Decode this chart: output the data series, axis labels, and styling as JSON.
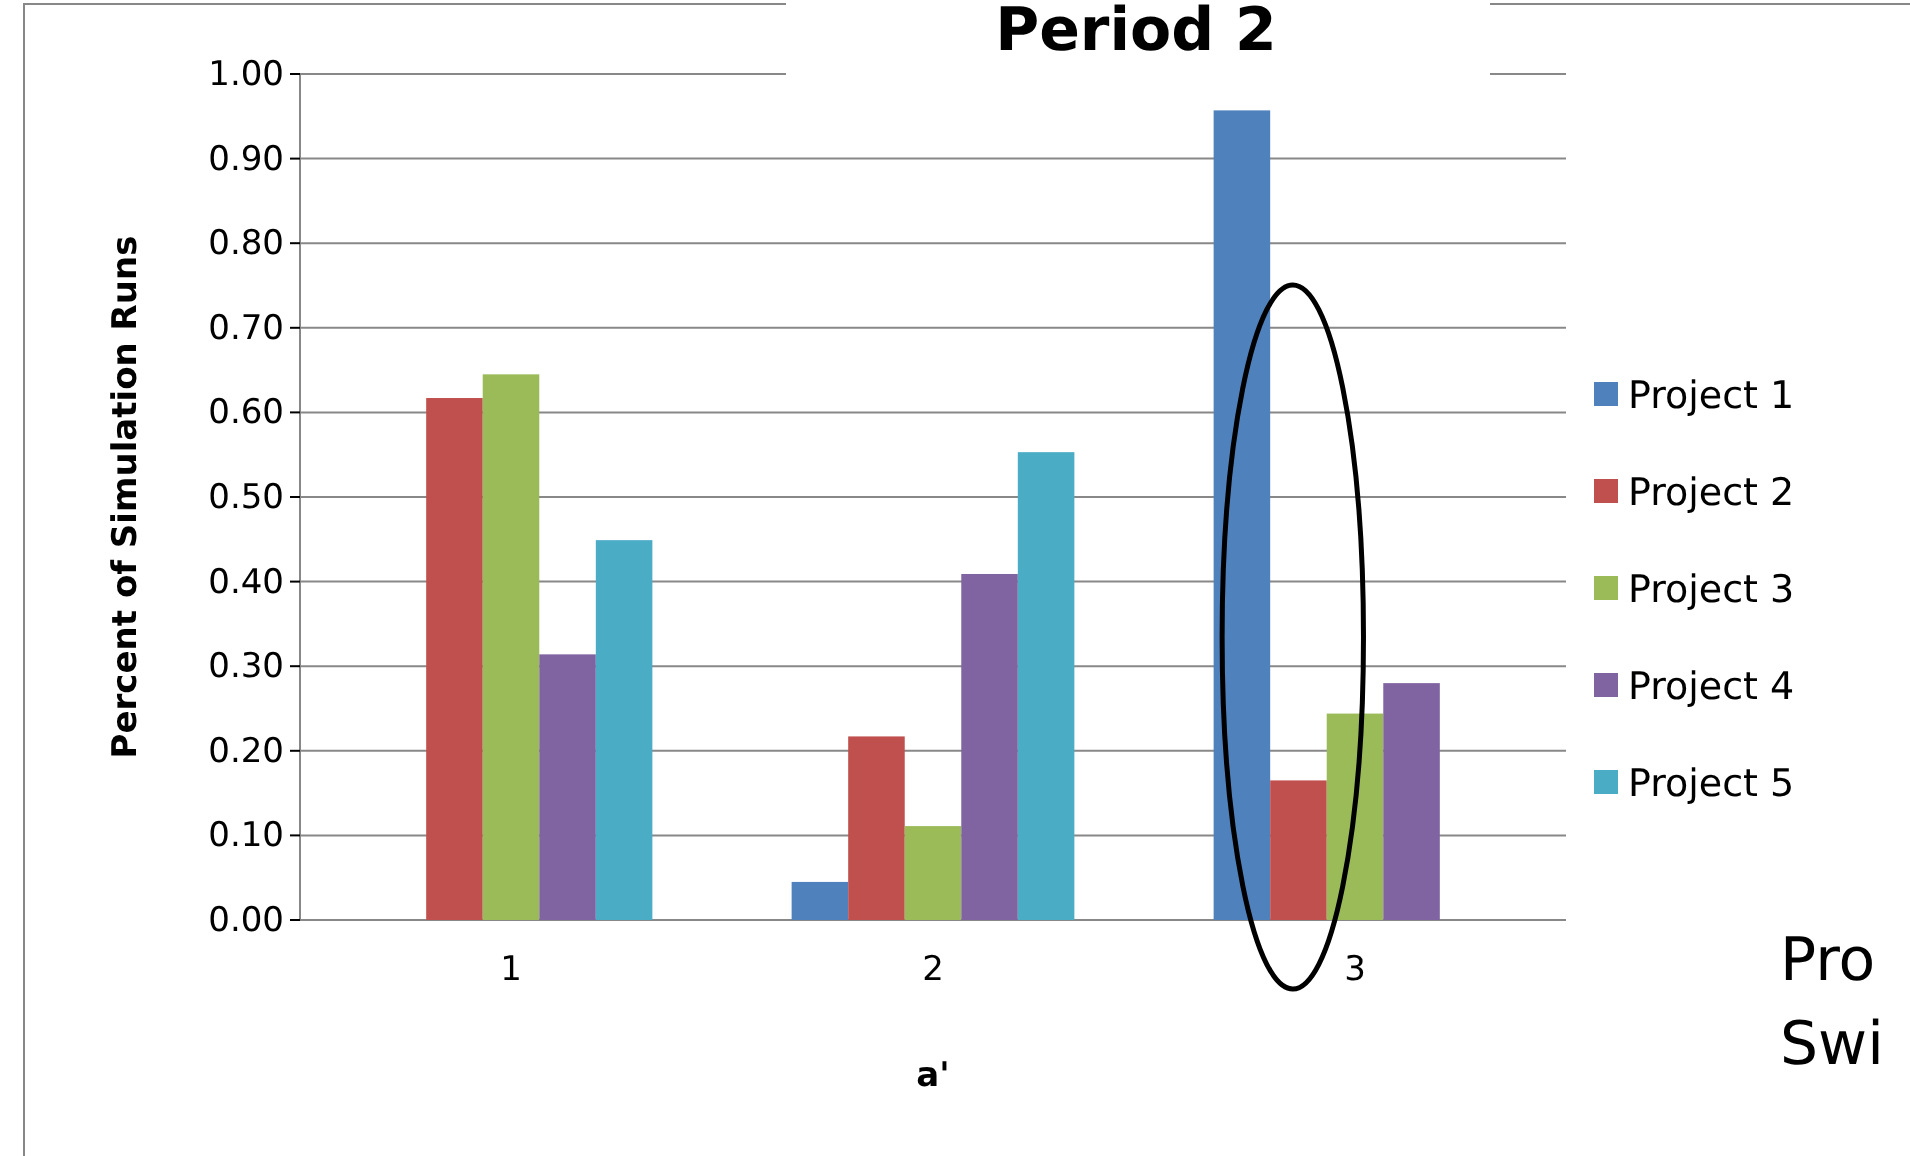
{
  "chart_data": {
    "type": "bar",
    "title": "Period 2",
    "xlabel": "a'",
    "ylabel": "Percent of Simulation Runs",
    "categories": [
      "1",
      "2",
      "3"
    ],
    "series": [
      {
        "name": "Project 1",
        "color": "#4f81bd",
        "values": [
          0,
          0.045,
          0.957
        ]
      },
      {
        "name": "Project 2",
        "color": "#c0504d",
        "values": [
          0.617,
          0.217,
          0.165
        ]
      },
      {
        "name": "Project 3",
        "color": "#9bbb59",
        "values": [
          0.645,
          0.111,
          0.244
        ]
      },
      {
        "name": "Project 4",
        "color": "#8064a2",
        "values": [
          0.314,
          0.409,
          0.28
        ]
      },
      {
        "name": "Project 5",
        "color": "#4bacc6",
        "values": [
          0.449,
          0.553,
          null
        ]
      }
    ],
    "ylim": [
      0,
      1
    ],
    "yticks": [
      {
        "value": 0,
        "label": "0.00"
      },
      {
        "value": 0.1,
        "label": "0.10"
      },
      {
        "value": 0.2,
        "label": "0.20"
      },
      {
        "value": 0.3,
        "label": "0.30"
      },
      {
        "value": 0.4,
        "label": "0.40"
      },
      {
        "value": 0.5,
        "label": "0.50"
      },
      {
        "value": 0.6,
        "label": "0.60"
      },
      {
        "value": 0.7,
        "label": "0.70"
      },
      {
        "value": 0.8,
        "label": "0.80"
      },
      {
        "value": 0.9,
        "label": "0.90"
      },
      {
        "value": 1,
        "label": "1.00"
      }
    ],
    "grid": "y",
    "legend": "right",
    "annotations": [
      "Pro",
      "Swi"
    ]
  }
}
